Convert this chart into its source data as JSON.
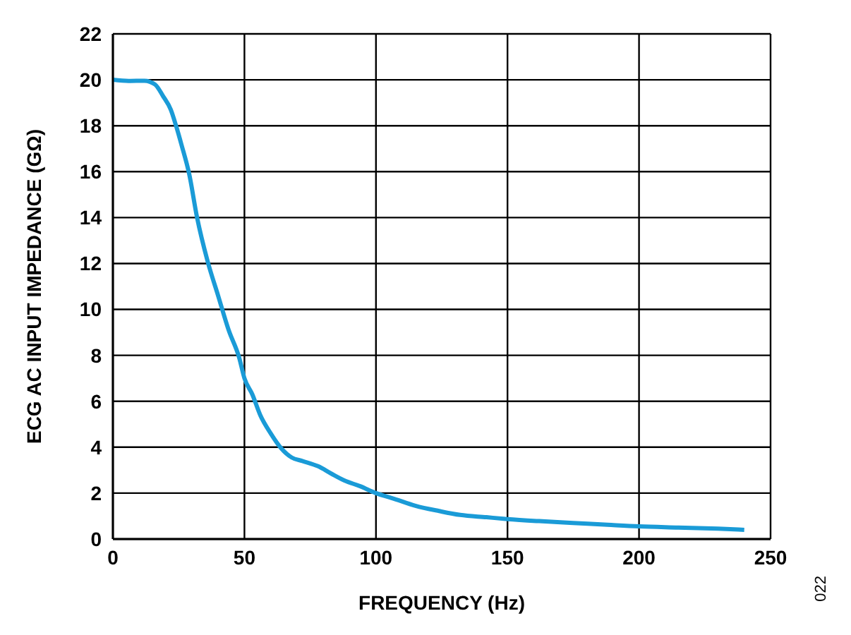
{
  "chart_data": {
    "type": "line",
    "xlabel": "FREQUENCY (Hz)",
    "ylabel": "ECG AC INPUT IMPEDANCE (GΩ)",
    "annotations": [
      "022"
    ],
    "x": [
      0,
      6,
      12,
      16,
      19,
      22,
      24,
      26,
      29,
      32,
      36,
      40,
      44,
      48,
      50,
      53,
      56,
      60,
      64,
      68,
      72,
      78,
      83,
      88,
      94,
      100,
      107,
      115,
      124,
      132,
      142,
      150,
      162,
      175,
      188,
      200,
      215,
      230,
      240
    ],
    "series": [
      {
        "color": "#1a9bd7",
        "values": [
          20,
          19.95,
          19.96,
          19.8,
          19.3,
          18.7,
          18,
          17.2,
          15.9,
          14,
          12.1,
          10.6,
          9.1,
          7.9,
          7.0,
          6.3,
          5.4,
          4.6,
          3.95,
          3.55,
          3.4,
          3.17,
          2.85,
          2.55,
          2.3,
          2.0,
          1.75,
          1.45,
          1.22,
          1.05,
          0.95,
          0.87,
          0.78,
          0.7,
          0.62,
          0.55,
          0.5,
          0.45,
          0.4
        ]
      }
    ],
    "xlim": [
      0,
      250
    ],
    "xticks": [
      0,
      50,
      100,
      150,
      200,
      250
    ],
    "ylim": [
      0,
      22
    ],
    "yticks": [
      0,
      2,
      4,
      6,
      8,
      10,
      12,
      14,
      16,
      18,
      20,
      22
    ],
    "grid": true,
    "legend": false,
    "marker": "none",
    "line_style": "solid"
  }
}
